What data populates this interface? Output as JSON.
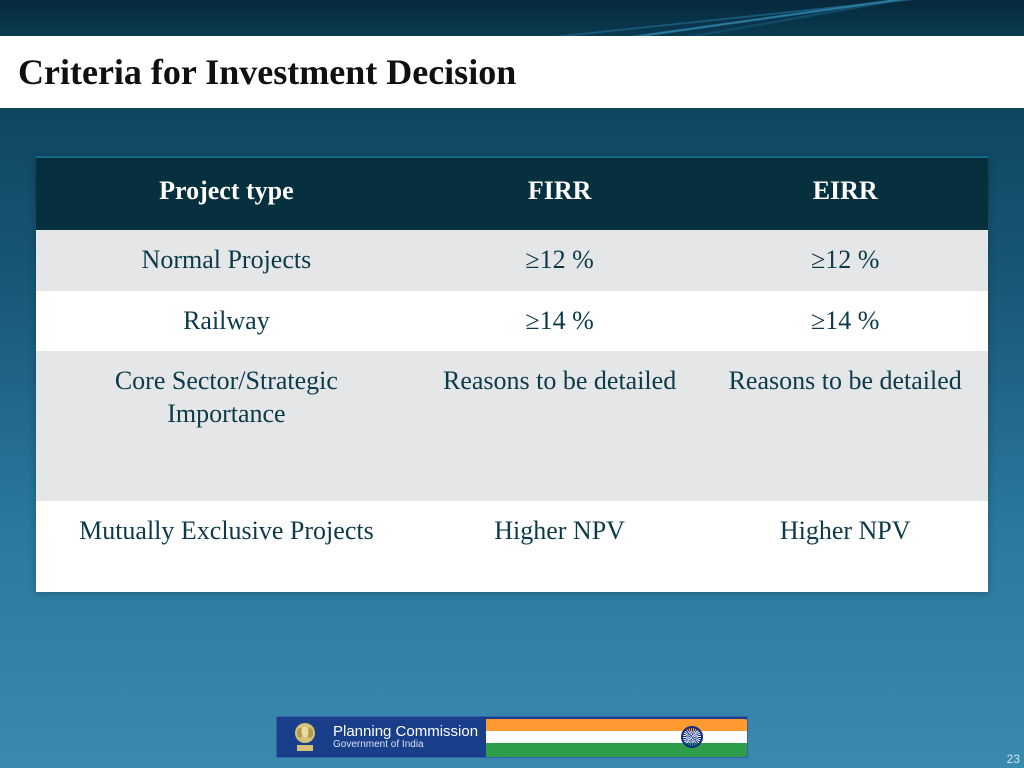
{
  "slide": {
    "title": "Criteria for Investment Decision",
    "page_number": "23"
  },
  "table": {
    "type": "table",
    "header_bg": "#07303f",
    "header_text_color": "#ffffff",
    "odd_row_bg": "#e4e6e8",
    "even_row_bg": "#ffffff",
    "cell_text_color": "#0d3a4a",
    "header_fontsize": 26,
    "cell_fontsize": 26,
    "columns": [
      "Project type",
      "FIRR",
      "EIRR"
    ],
    "col_widths_pct": [
      40,
      30,
      30
    ],
    "rows": [
      {
        "cells": [
          "Normal Projects",
          "≥12 %",
          "≥12 %"
        ],
        "bg": "odd"
      },
      {
        "cells": [
          "Railway",
          "≥14 %",
          "≥14 %"
        ],
        "bg": "even"
      },
      {
        "cells": [
          "Core Sector/Strategic Importance",
          "Reasons to be detailed",
          "Reasons to be detailed"
        ],
        "bg": "odd",
        "tall": true
      },
      {
        "cells": [
          "Mutually Exclusive Projects",
          "Higher NPV",
          "Higher NPV"
        ],
        "bg": "even",
        "last": true
      }
    ]
  },
  "footer": {
    "org_line1": "Planning Commission",
    "org_line2": "Government of India",
    "banner_bg": "#1a3f8a",
    "flag_colors": {
      "saffron": "#ff9a33",
      "white": "#ffffff",
      "green": "#2e9e4a",
      "chakra": "#0a2a88"
    }
  },
  "background": {
    "gradient_top": "#0a3a52",
    "gradient_bottom": "#3a8ab0",
    "title_bar_bg": "#ffffff",
    "title_text_color": "#101010"
  }
}
